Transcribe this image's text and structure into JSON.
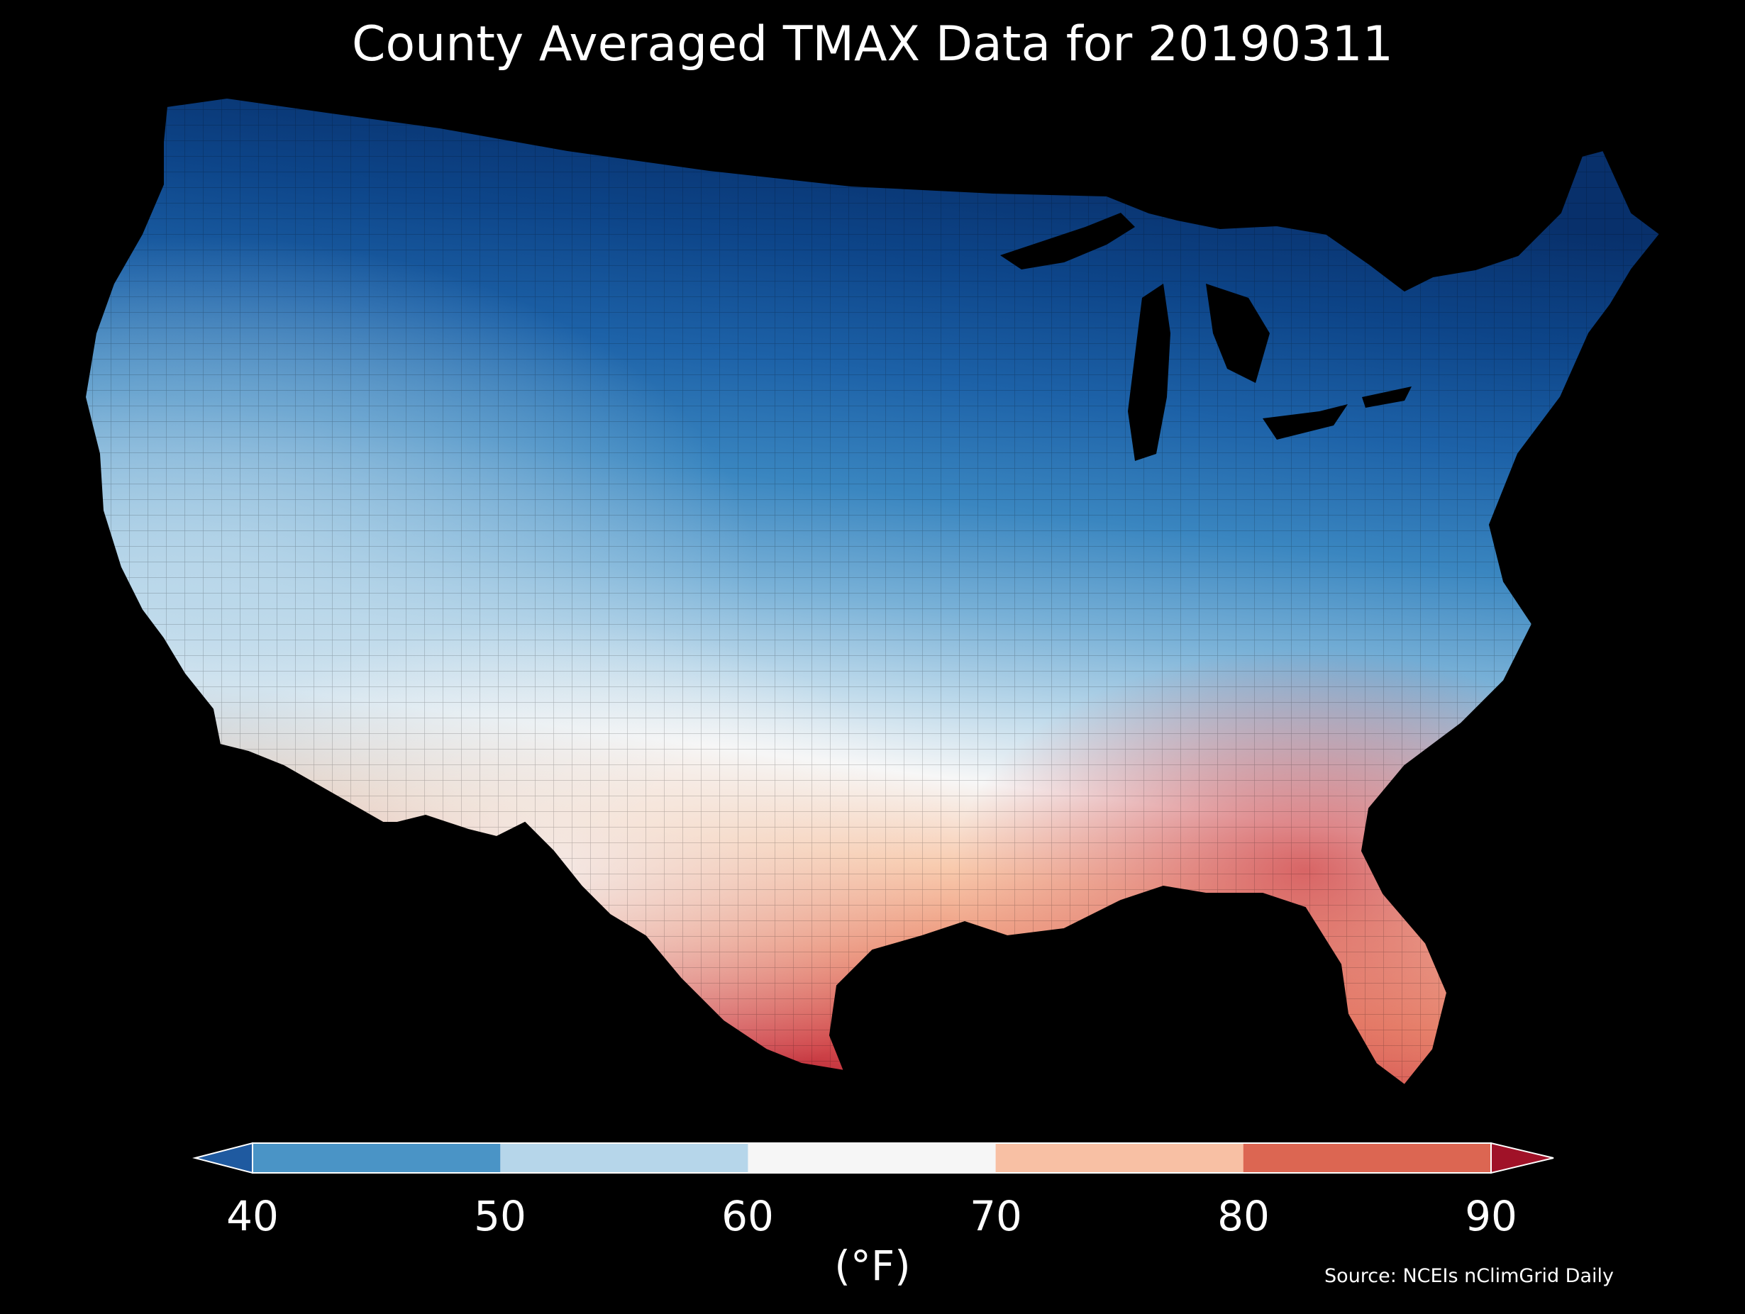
{
  "title": "County Averaged TMAX Data for 20190311",
  "source": "Source: NCEIs nClimGrid Daily",
  "colorbar": {
    "units": "(°F)",
    "ticks": [
      "40",
      "50",
      "60",
      "70",
      "80",
      "90"
    ],
    "bins": [
      {
        "range": "<40",
        "color": "#1f5aa0"
      },
      {
        "range": "40-50",
        "color": "#4a94c6"
      },
      {
        "range": "50-60",
        "color": "#b6d6ea"
      },
      {
        "range": "60-70",
        "color": "#f6f6f6"
      },
      {
        "range": "70-80",
        "color": "#f8c0a4"
      },
      {
        "range": "80-90",
        "color": "#dc6652"
      },
      {
        "range": ">90",
        "color": "#a01228"
      }
    ]
  },
  "map": {
    "region": "Contiguous United States",
    "variable": "TMAX",
    "date": "20190311",
    "gradient_colors": [
      "#08306b",
      "#0d4589",
      "#1d62a8",
      "#3a86c0",
      "#79b1d7",
      "#bbd8ea",
      "#f7f7f7",
      "#f8caad",
      "#ea8a70",
      "#d0464a",
      "#a50f26"
    ]
  }
}
